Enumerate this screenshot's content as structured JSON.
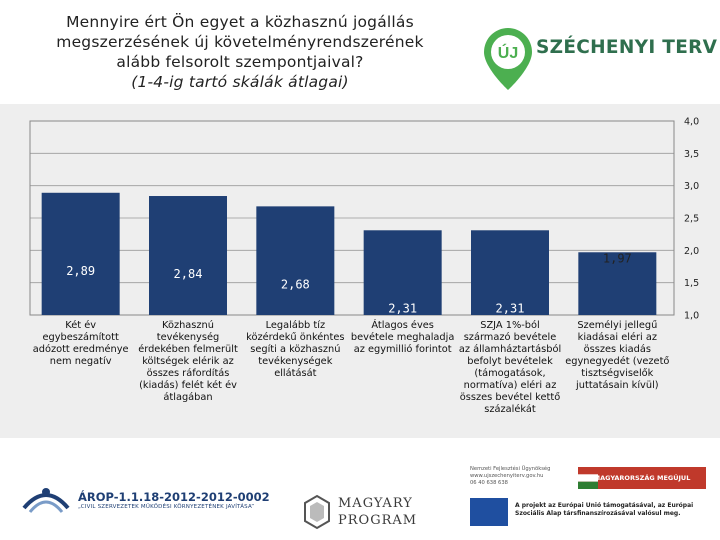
{
  "title": {
    "line1": "Mennyire ért Ön egyet a közhasznú jogállás",
    "line2": "megszerzésének új követelményrendszerének",
    "line3": "alább felsorolt szempontjaival?",
    "subtitle": "(1-4-ig tartó skálák átlagai)"
  },
  "logo": {
    "badge": "ÚJ",
    "text": "SZÉCHENYI TERV"
  },
  "colors": {
    "bar": "#1f3f74",
    "panel": "#eeeeee",
    "logo_green": "#4caf50"
  },
  "chart_data": {
    "type": "bar",
    "title": "Mennyire ért Ön egyet a közhasznú jogállás megszerzésének új követelményrendszerének alább felsorolt szempontjaival? (1-4-ig tartó skálák átlagai)",
    "categories": [
      "Két év egybeszámított adózott eredménye nem negatív",
      "Közhasznú tevékenység érdekében felmerült költségek elérik az összes ráfordítás (kiadás) felét két év átlagában",
      "Legalább tíz közérdekű önkéntes segíti a közhasznú tevékenységek ellátását",
      "Átlagos éves bevétele meghaladja az egymillió forintot",
      "SZJA 1%-ból származó bevétele az államháztartásból befolyt bevételek (támogatások, normatíva) eléri az összes bevétel kettő százalékát",
      "Személyi jellegű kiadásai eléri az összes kiadás egynegyedét (vezető tisztségviselők juttatásain kívül)"
    ],
    "category_lines": [
      [
        "Két év",
        "egybeszámított",
        "adózott eredménye",
        "nem negatív"
      ],
      [
        "Közhasznú",
        "tevékenység",
        "érdekében felmerült",
        "költségek elérik az",
        "összes ráfordítás",
        "(kiadás) felét két év",
        "átlagában"
      ],
      [
        "Legalább tíz",
        "közérdekű önkéntes",
        "segíti a közhasznú",
        "tevékenységek",
        "ellátását"
      ],
      [
        "Átlagos éves",
        "bevétele meghaladja",
        "az egymillió forintot"
      ],
      [
        "SZJA 1%-ból",
        "származó bevétele",
        "az államháztartásból",
        "befolyt bevételek",
        "(támogatások,",
        "normatíva) eléri az",
        "összes bevétel kettő",
        "százalékát"
      ],
      [
        "Személyi jellegű",
        "kiadásai eléri az",
        "összes kiadás",
        "egynegyedét (vezető",
        "tisztségviselők",
        "juttatásain kívül)"
      ]
    ],
    "values": [
      2.89,
      2.84,
      2.68,
      2.31,
      2.31,
      1.97
    ],
    "value_labels": [
      "2,89",
      "2,84",
      "2,68",
      "2,31",
      "2,31",
      "1,97"
    ],
    "ylim": [
      1.0,
      4.0
    ],
    "yticks": [
      4.0,
      3.5,
      3.0,
      2.5,
      2.0,
      1.5,
      1.0
    ],
    "ytick_labels": [
      "4,0",
      "3,5",
      "3,0",
      "2,5",
      "2,0",
      "1,5",
      "1,0"
    ],
    "axis_position": "right",
    "grid": true
  },
  "footer": {
    "arop_title": "ÁROP-1.1.18-2012-2012-0002",
    "arop_sub": "„CIVIL SZERVEZETEK MŰKÖDÉSI KÖRNYEZETÉNEK JAVÍTÁSA”",
    "magyary_1": "MAGYARY",
    "magyary_2": "PROGRAM",
    "nfu_lines": [
      "Nemzeti Fejlesztési Ügynökség",
      "www.ujszechenyiterv.gov.hu",
      "06 40 638 638"
    ],
    "mm_badge": "MAGYARORSZÁG MEGÚJUL",
    "eu_text": "A projekt az Európai Unió támogatásával, az Európai Szociális Alap társfinanszírozásával valósul meg."
  }
}
